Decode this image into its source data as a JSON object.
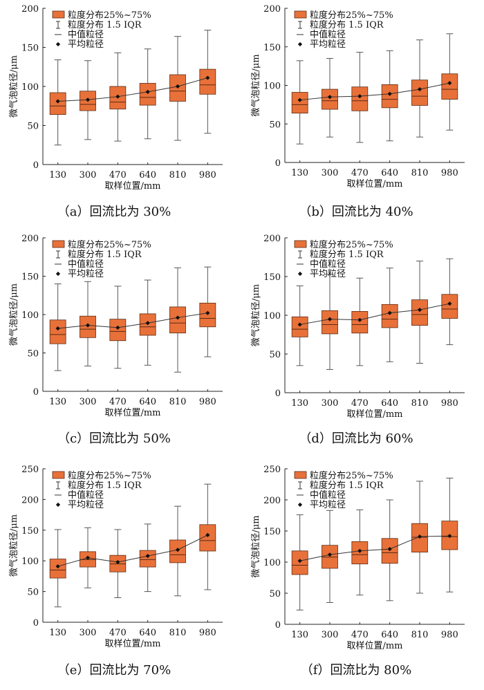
{
  "legend": {
    "box_label": "粒度分布25%~75%",
    "whisker_label": "粒度分布 1.5 IQR",
    "median_label": "中值粒径",
    "mean_label": "平均粒径"
  },
  "colors": {
    "box_fill": "#e8713a",
    "box_stroke": "#5a2a12",
    "axis": "#222222",
    "mean_line": "#333333"
  },
  "chart_data": [
    {
      "type": "box",
      "caption": "（a）回流比为 30%",
      "xlabel": "取样位置/mm",
      "ylabel": "微气泡粒径/μm",
      "categories": [
        "130",
        "300",
        "470",
        "640",
        "810",
        "980"
      ],
      "ylim": [
        0,
        200
      ],
      "yticks": [
        0,
        50,
        100,
        150,
        200
      ],
      "whisker_low": [
        25,
        32,
        30,
        33,
        31,
        40
      ],
      "q1": [
        64,
        69,
        71,
        76,
        81,
        90
      ],
      "median": [
        75,
        77,
        80,
        86,
        94,
        102
      ],
      "q3": [
        92,
        94,
        100,
        104,
        115,
        122
      ],
      "whisker_high": [
        134,
        133,
        143,
        148,
        164,
        172
      ],
      "mean": [
        81,
        83,
        87,
        93,
        100,
        111
      ]
    },
    {
      "type": "box",
      "caption": "（b）回流比为 40%",
      "xlabel": "取样位置/mm",
      "ylabel": "微气泡粒径/μm",
      "categories": [
        "130",
        "300",
        "470",
        "640",
        "810",
        "980"
      ],
      "ylim": [
        0,
        200
      ],
      "yticks": [
        0,
        50,
        100,
        150,
        200
      ],
      "whisker_low": [
        24,
        33,
        26,
        28,
        33,
        42
      ],
      "q1": [
        64,
        69,
        67,
        71,
        74,
        82
      ],
      "median": [
        75,
        80,
        80,
        82,
        86,
        95
      ],
      "q3": [
        91,
        95,
        98,
        101,
        107,
        115
      ],
      "whisker_high": [
        132,
        135,
        143,
        145,
        159,
        167
      ],
      "mean": [
        81,
        85,
        86,
        89,
        95,
        103
      ]
    },
    {
      "type": "box",
      "caption": "（c）回流比为 50%",
      "xlabel": "取样位置/mm",
      "ylabel": "微气泡粒径/μm",
      "categories": [
        "130",
        "300",
        "470",
        "640",
        "810",
        "980"
      ],
      "ylim": [
        0,
        200
      ],
      "yticks": [
        0,
        50,
        100,
        150,
        200
      ],
      "whisker_low": [
        27,
        33,
        30,
        34,
        25,
        45
      ],
      "q1": [
        62,
        70,
        66,
        73,
        76,
        84
      ],
      "median": [
        74,
        81,
        78,
        84,
        89,
        95
      ],
      "q3": [
        93,
        98,
        94,
        101,
        110,
        115
      ],
      "whisker_high": [
        140,
        143,
        137,
        145,
        161,
        162
      ],
      "mean": [
        82,
        86,
        83,
        89,
        96,
        102
      ]
    },
    {
      "type": "box",
      "caption": "（d）回流比为 60%",
      "xlabel": "取样位置/mm",
      "ylabel": "微气泡粒径/μm",
      "categories": [
        "130",
        "300",
        "470",
        "640",
        "810",
        "980"
      ],
      "ylim": [
        0,
        200
      ],
      "yticks": [
        0,
        50,
        100,
        150,
        200
      ],
      "whisker_low": [
        35,
        30,
        35,
        40,
        38,
        62
      ],
      "q1": [
        72,
        76,
        77,
        84,
        87,
        96
      ],
      "median": [
        82,
        88,
        88,
        95,
        101,
        108
      ],
      "q3": [
        98,
        106,
        105,
        114,
        120,
        127
      ],
      "whisker_high": [
        138,
        153,
        148,
        161,
        170,
        173
      ],
      "mean": [
        88,
        95,
        94,
        103,
        107,
        115
      ]
    },
    {
      "type": "box",
      "caption": "（e）回流比为 70%",
      "xlabel": "取样位置/mm",
      "ylabel": "微气泡粒径/μm",
      "categories": [
        "130",
        "300",
        "470",
        "640",
        "810",
        "980"
      ],
      "ylim": [
        0,
        250
      ],
      "yticks": [
        0,
        50,
        100,
        150,
        200,
        250
      ],
      "whisker_low": [
        25,
        56,
        40,
        50,
        43,
        53
      ],
      "q1": [
        72,
        90,
        82,
        90,
        97,
        116
      ],
      "median": [
        85,
        102,
        95,
        102,
        110,
        133
      ],
      "q3": [
        103,
        115,
        109,
        117,
        134,
        159
      ],
      "whisker_high": [
        151,
        154,
        151,
        160,
        189,
        225
      ],
      "mean": [
        91,
        105,
        98,
        108,
        118,
        142
      ]
    },
    {
      "type": "box",
      "caption": "（f）回流比为 80%",
      "xlabel": "取样位置/mm",
      "ylabel": "微气泡粒径/μm",
      "categories": [
        "130",
        "300",
        "470",
        "640",
        "810",
        "980"
      ],
      "ylim": [
        0,
        250
      ],
      "yticks": [
        0,
        50,
        100,
        150,
        200,
        250
      ],
      "whisker_low": [
        23,
        35,
        47,
        38,
        50,
        52
      ],
      "q1": [
        80,
        90,
        97,
        98,
        116,
        120
      ],
      "median": [
        95,
        108,
        112,
        115,
        140,
        141
      ],
      "q3": [
        118,
        127,
        133,
        138,
        162,
        166
      ],
      "whisker_high": [
        176,
        183,
        184,
        200,
        230,
        235
      ],
      "mean": [
        102,
        112,
        118,
        121,
        141,
        142
      ]
    }
  ]
}
